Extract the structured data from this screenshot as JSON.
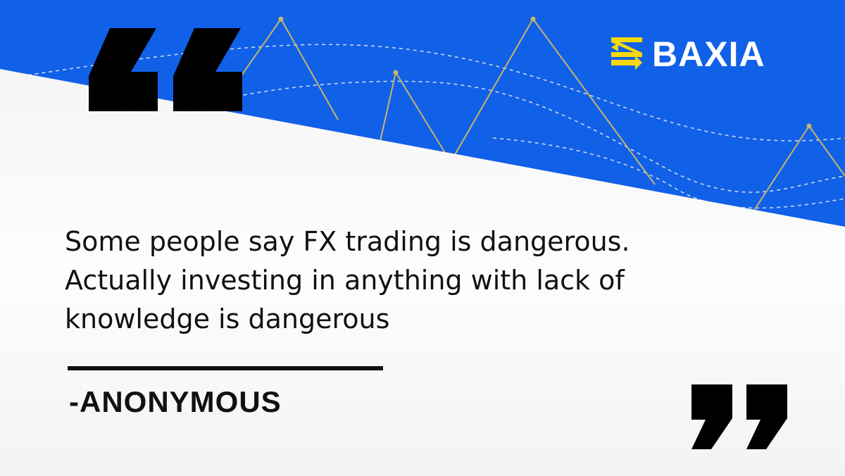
{
  "brand": {
    "name": "BAXIA",
    "colors": {
      "blue": "#1160E8",
      "yellow": "#F5D90A",
      "ink": "#111111"
    }
  },
  "icons": {
    "open_quote": "left-double-quote-icon",
    "close_quote": "right-double-quote-icon",
    "logo_mark": "baxia-z-arrows-icon"
  },
  "quote": {
    "lines": [
      "Some people say FX trading is dangerous.",
      "Actually investing in anything with lack of",
      "knowledge is dangerous"
    ],
    "author": "-ANONYMOUS"
  }
}
